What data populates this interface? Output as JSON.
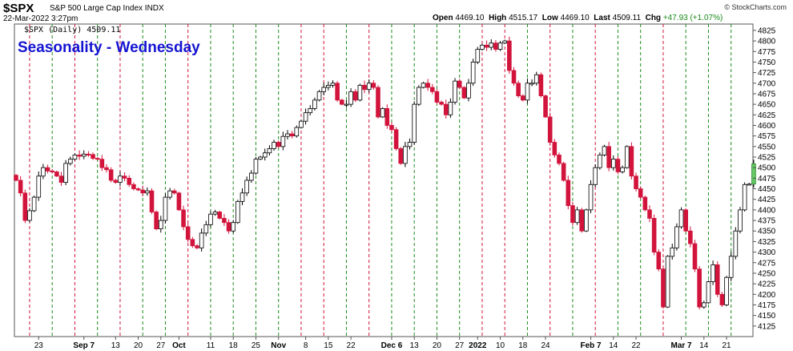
{
  "header": {
    "symbol": "$SPX",
    "name": "S&P 500 Large Cap Index",
    "exchange": "INDX",
    "datetime": "22-Mar-2022 3:27pm",
    "copyright": "© StockCharts.com",
    "open_label": "Open",
    "open": "4469.10",
    "high_label": "High",
    "high": "4515.17",
    "low_label": "Low",
    "low": "4469.10",
    "last_label": "Last",
    "last": "4509.11",
    "chg_label": "Chg",
    "chg": "+47.93 (+1.07%)"
  },
  "chart_data": {
    "type": "candlestick",
    "title": "Seasonality - Wednesday",
    "legend": "$SPX (Daily) 4509.11",
    "title_color": "#1414d2",
    "up_color": "#ffffff",
    "down_color": "#d2143c",
    "last_color": "#64c864",
    "ylim": [
      4100,
      4840
    ],
    "y_ticks": [
      4125,
      4150,
      4175,
      4200,
      4225,
      4250,
      4275,
      4300,
      4325,
      4350,
      4375,
      4400,
      4425,
      4450,
      4475,
      4500,
      4525,
      4550,
      4575,
      4600,
      4625,
      4650,
      4675,
      4700,
      4725,
      4750,
      4775,
      4800,
      4825
    ],
    "x_labels": [
      {
        "label": "23",
        "i": 5
      },
      {
        "label": "Sep 7",
        "i": 15
      },
      {
        "label": "13",
        "i": 22
      },
      {
        "label": "20",
        "i": 27
      },
      {
        "label": "27",
        "i": 32
      },
      {
        "label": "Oct",
        "i": 36
      },
      {
        "label": "11",
        "i": 43
      },
      {
        "label": "18",
        "i": 48
      },
      {
        "label": "25",
        "i": 53
      },
      {
        "label": "Nov",
        "i": 58
      },
      {
        "label": "8",
        "i": 64
      },
      {
        "label": "15",
        "i": 69
      },
      {
        "label": "22",
        "i": 74
      },
      {
        "label": "Dec 6",
        "i": 83
      },
      {
        "label": "13",
        "i": 88
      },
      {
        "label": "20",
        "i": 93
      },
      {
        "label": "27",
        "i": 98
      },
      {
        "label": "2022",
        "i": 102
      },
      {
        "label": "10",
        "i": 107
      },
      {
        "label": "18",
        "i": 112
      },
      {
        "label": "24",
        "i": 117
      },
      {
        "label": "Feb 7",
        "i": 127
      },
      {
        "label": "14",
        "i": 132
      },
      {
        "label": "22",
        "i": 137
      },
      {
        "label": "Mar 7",
        "i": 147
      },
      {
        "label": "14",
        "i": 152
      },
      {
        "label": "21",
        "i": 157
      }
    ],
    "vlines": [
      {
        "i": 3,
        "c": "r"
      },
      {
        "i": 8,
        "c": "g"
      },
      {
        "i": 13,
        "c": "r"
      },
      {
        "i": 18,
        "c": "g"
      },
      {
        "i": 23,
        "c": "r"
      },
      {
        "i": 28,
        "c": "g"
      },
      {
        "i": 33,
        "c": "g"
      },
      {
        "i": 38,
        "c": "r"
      },
      {
        "i": 43,
        "c": "g"
      },
      {
        "i": 48,
        "c": "g"
      },
      {
        "i": 53,
        "c": "g"
      },
      {
        "i": 58,
        "c": "g"
      },
      {
        "i": 63,
        "c": "r"
      },
      {
        "i": 68,
        "c": "r"
      },
      {
        "i": 73,
        "c": "g"
      },
      {
        "i": 78,
        "c": "r"
      },
      {
        "i": 83,
        "c": "g"
      },
      {
        "i": 88,
        "c": "g"
      },
      {
        "i": 93,
        "c": "g"
      },
      {
        "i": 98,
        "c": "g"
      },
      {
        "i": 103,
        "c": "r"
      },
      {
        "i": 108,
        "c": "r"
      },
      {
        "i": 113,
        "c": "g"
      },
      {
        "i": 118,
        "c": "r"
      },
      {
        "i": 123,
        "c": "g"
      },
      {
        "i": 128,
        "c": "r"
      },
      {
        "i": 133,
        "c": "g"
      },
      {
        "i": 138,
        "c": "g"
      },
      {
        "i": 143,
        "c": "r"
      },
      {
        "i": 148,
        "c": "g"
      },
      {
        "i": 153,
        "c": "g"
      },
      {
        "i": 158,
        "c": "g"
      }
    ],
    "close": [
      4470,
      4440,
      4375,
      4398,
      4430,
      4480,
      4500,
      4492,
      4490,
      4480,
      4465,
      4510,
      4520,
      4530,
      4527,
      4532,
      4531,
      4522,
      4520,
      4500,
      4495,
      4470,
      4465,
      4480,
      4475,
      4460,
      4450,
      4447,
      4440,
      4445,
      4395,
      4355,
      4375,
      4430,
      4445,
      4440,
      4400,
      4360,
      4330,
      4315,
      4310,
      4345,
      4365,
      4390,
      4395,
      4380,
      4370,
      4350,
      4370,
      4420,
      4440,
      4470,
      4487,
      4520,
      4525,
      4535,
      4545,
      4560,
      4550,
      4574,
      4580,
      4575,
      4595,
      4610,
      4630,
      4640,
      4660,
      4680,
      4690,
      4695,
      4700,
      4660,
      4650,
      4650,
      4680,
      4660,
      4695,
      4685,
      4700,
      4690,
      4620,
      4640,
      4600,
      4590,
      4545,
      4510,
      4550,
      4560,
      4650,
      4690,
      4700,
      4690,
      4680,
      4655,
      4650,
      4625,
      4655,
      4705,
      4690,
      4665,
      4700,
      4750,
      4780,
      4790,
      4785,
      4795,
      4780,
      4795,
      4800,
      4730,
      4700,
      4670,
      4660,
      4700,
      4700,
      4720,
      4670,
      4620,
      4560,
      4530,
      4510,
      4470,
      4410,
      4370,
      4400,
      4350,
      4400,
      4460,
      4500,
      4530,
      4550,
      4500,
      4520,
      4490,
      4500,
      4550,
      4480,
      4450,
      4430,
      4400,
      4380,
      4300,
      4260,
      4170,
      4290,
      4310,
      4360,
      4400,
      4350,
      4320,
      4260,
      4170,
      4180,
      4230,
      4270,
      4200,
      4175,
      4240,
      4290,
      4350,
      4400,
      4460,
      4461,
      4509
    ]
  }
}
